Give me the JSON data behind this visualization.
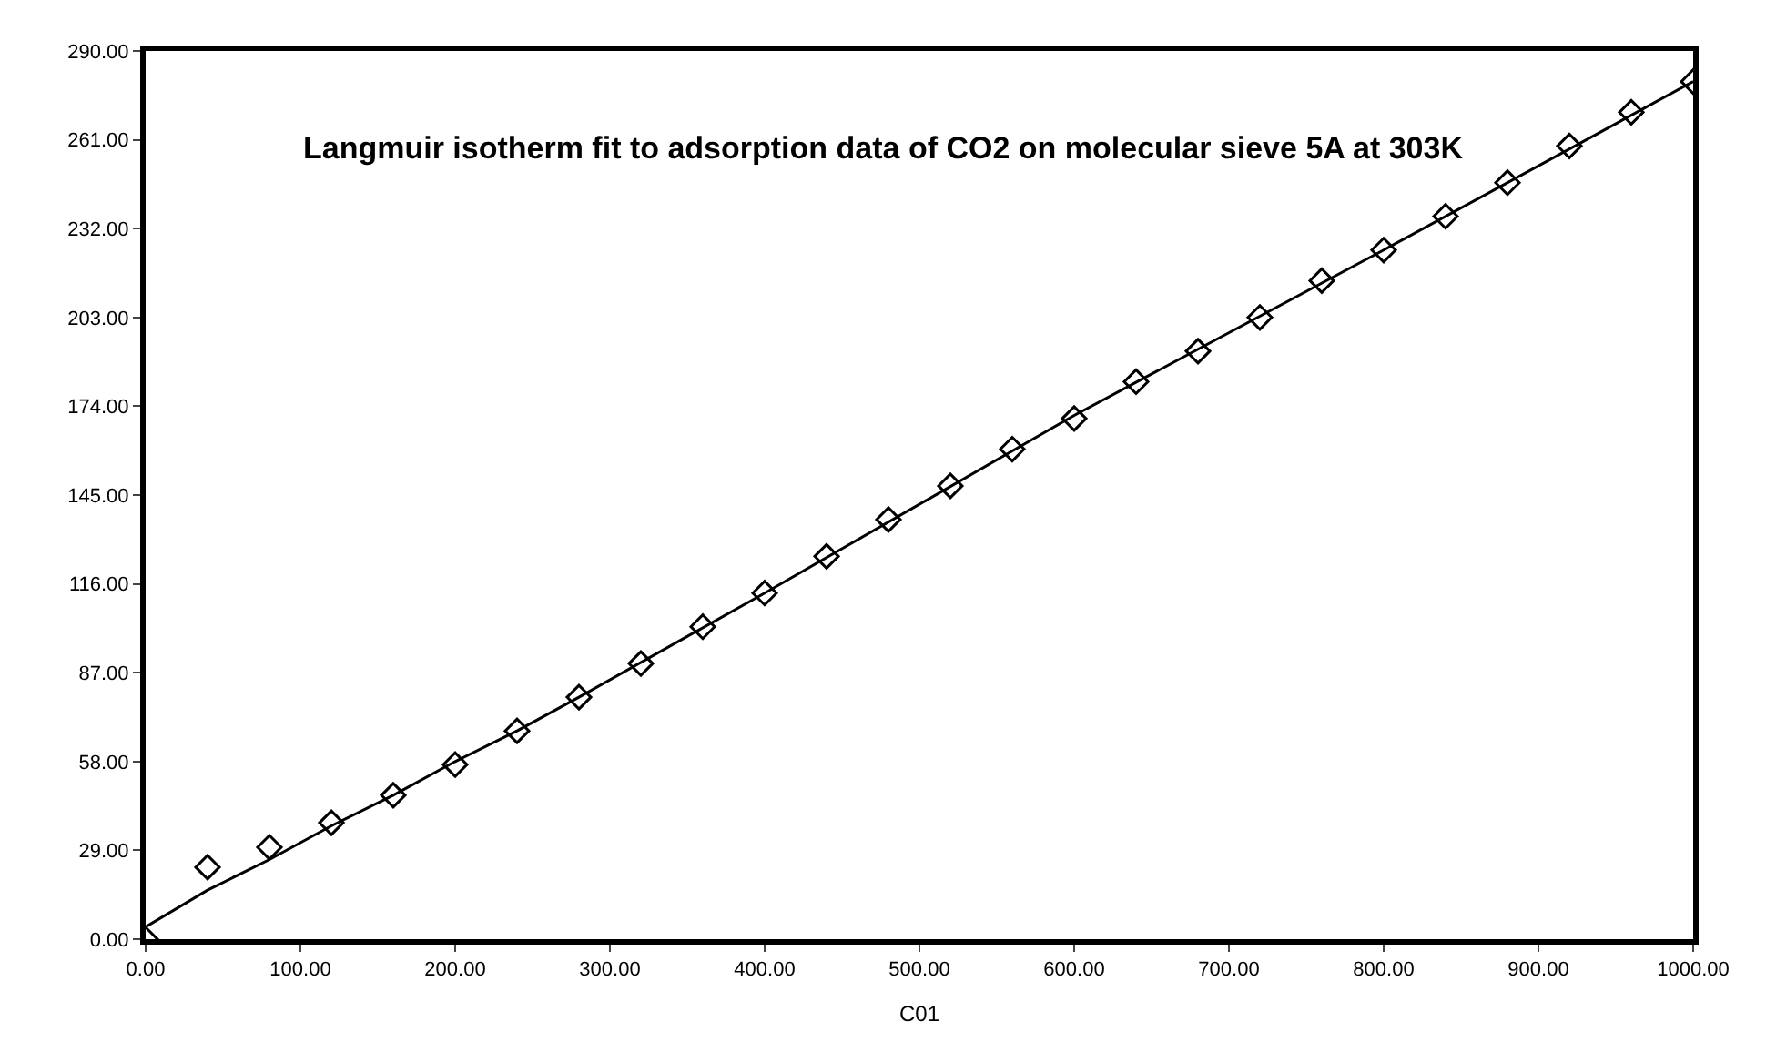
{
  "chart_data": {
    "type": "scatter",
    "title": "Langmuir isotherm fit to adsorption data of CO2 on molecular sieve 5A at 303K",
    "xlabel": "C01",
    "x": [
      0,
      40,
      80,
      120,
      160,
      200,
      240,
      280,
      320,
      360,
      400,
      440,
      480,
      520,
      560,
      600,
      640,
      680,
      720,
      760,
      800,
      840,
      880,
      920,
      960,
      1000
    ],
    "series": [
      {
        "color": "#000000",
        "marker": "diamond",
        "values": [
          0,
          23.5,
          30,
          38,
          47,
          57,
          68,
          79,
          90,
          102,
          113,
          125,
          137,
          148,
          160,
          170,
          182,
          192,
          203,
          215,
          225,
          236,
          247,
          259,
          270,
          280
        ]
      },
      {
        "type": "line",
        "color": "#000000",
        "x": [
          0,
          40,
          80,
          120,
          160,
          200,
          240,
          280,
          400,
          600,
          800,
          1000
        ],
        "values": [
          4,
          16,
          26,
          37,
          47,
          58,
          68,
          79,
          113,
          171,
          225,
          280
        ]
      }
    ],
    "xlim": [
      0,
      1000
    ],
    "ylim": [
      0,
      290
    ],
    "xticks": [
      {
        "value": 0,
        "label": "0.00"
      },
      {
        "value": 100,
        "label": "100.00"
      },
      {
        "value": 200,
        "label": "200.00"
      },
      {
        "value": 300,
        "label": "300.00"
      },
      {
        "value": 400,
        "label": "400.00"
      },
      {
        "value": 500,
        "label": "500.00"
      },
      {
        "value": 600,
        "label": "600.00"
      },
      {
        "value": 700,
        "label": "700.00"
      },
      {
        "value": 800,
        "label": "800.00"
      },
      {
        "value": 900,
        "label": "900.00"
      },
      {
        "value": 1000,
        "label": "1000.00"
      }
    ],
    "yticks": [
      {
        "value": 0,
        "label": "0.00"
      },
      {
        "value": 29,
        "label": "29.00"
      },
      {
        "value": 58,
        "label": "58.00"
      },
      {
        "value": 87,
        "label": "87.00"
      },
      {
        "value": 116,
        "label": "116.00"
      },
      {
        "value": 145,
        "label": "145.00"
      },
      {
        "value": 174,
        "label": "174.00"
      },
      {
        "value": 203,
        "label": "203.00"
      },
      {
        "value": 232,
        "label": "232.00"
      },
      {
        "value": 261,
        "label": "261.00"
      },
      {
        "value": 290,
        "label": "290.00"
      }
    ]
  }
}
